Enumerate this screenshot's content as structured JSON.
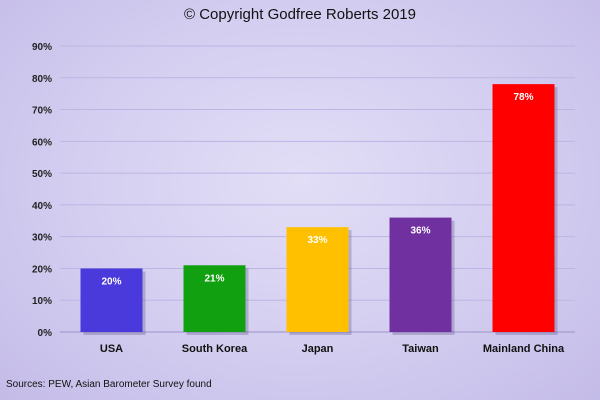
{
  "title": "© Copyright Godfree Roberts 2019",
  "source": "Sources: PEW, Asian Barometer Survey found",
  "colors": {
    "background": "#d8d2f2",
    "gridline": "#bdb5e3",
    "axis": "#9c95c6"
  },
  "chart_data": {
    "type": "bar",
    "title": "© Copyright Godfree Roberts 2019",
    "xlabel": "",
    "ylabel": "",
    "categories": [
      "USA",
      "South Korea",
      "Japan",
      "Taiwan",
      "Mainland China"
    ],
    "values": [
      20,
      21,
      33,
      36,
      78
    ],
    "data_labels": [
      "20%",
      "21%",
      "33%",
      "36%",
      "78%"
    ],
    "bar_colors": [
      "#4b3adb",
      "#10a010",
      "#ffc000",
      "#7030a0",
      "#ff0000"
    ],
    "ylim": [
      0,
      90
    ],
    "yticks": [
      0,
      10,
      20,
      30,
      40,
      50,
      60,
      70,
      80,
      90
    ],
    "ytick_labels": [
      "0%",
      "10%",
      "20%",
      "30%",
      "40%",
      "50%",
      "60%",
      "70%",
      "80%",
      "90%"
    ],
    "grid": true,
    "legend": "none"
  }
}
